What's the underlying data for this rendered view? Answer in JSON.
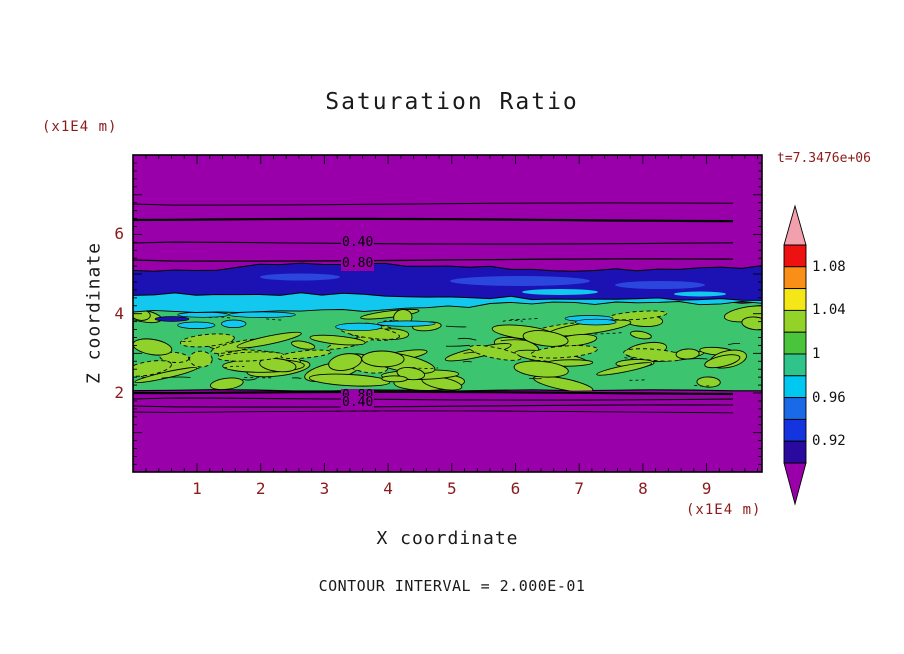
{
  "title": "Saturation Ratio",
  "timestamp": "t=7.3476e+06",
  "contour_note": "CONTOUR INTERVAL = 2.000E-01",
  "axes": {
    "x": {
      "label": "X coordinate",
      "unit": "(x1E4 m)",
      "tick_labels": [
        "1",
        "2",
        "3",
        "4",
        "5",
        "6",
        "7",
        "8",
        "9"
      ],
      "tick_values": [
        1,
        2,
        3,
        4,
        5,
        6,
        7,
        8,
        9
      ],
      "range": [
        0,
        9.9
      ]
    },
    "y": {
      "label": "Z coordinate",
      "unit": "(x1E4 m)",
      "tick_labels": [
        "2",
        "4",
        "6"
      ],
      "tick_values": [
        2,
        4,
        6
      ],
      "range": [
        0,
        8
      ]
    }
  },
  "contour_labels": {
    "upper": [
      "0.40",
      "0.80"
    ],
    "lower": [
      "0.80",
      "0.40"
    ]
  },
  "colorbar": {
    "tick_labels": [
      "1.08",
      "1.04",
      "1",
      "0.96",
      "0.92"
    ],
    "tick_values": [
      1.08,
      1.04,
      1,
      0.96,
      0.92
    ],
    "range": [
      0.9,
      1.1
    ],
    "segment_colors_top_to_bottom": [
      "#ee1111",
      "#fa8f17",
      "#f5e617",
      "#93d226",
      "#49c43b",
      "#2ec48a",
      "#00c8f0",
      "#1a6ae8",
      "#1434e0",
      "#2a0a9e"
    ],
    "above_range_color": "#f2a0ae",
    "below_range_color": "#9900aa"
  },
  "field_colors": {
    "background": "#9900aa",
    "band_blue": "#1c12b4",
    "band_cyan": "#12c8ee",
    "green_base": "#3cc46e",
    "green_blob": "#8fd22b"
  },
  "text_colors": {
    "title": "#1a1a1a",
    "axis_values": "#8b1a1a",
    "labels": "#1a1a1a"
  },
  "chart_data": {
    "type": "heatmap",
    "title": "Saturation Ratio",
    "xlabel": "X coordinate (x1E4 m)",
    "ylabel": "Z coordinate (x1E4 m)",
    "xlim": [
      0,
      9.9
    ],
    "ylim": [
      0,
      8
    ],
    "time_annotation": "t=7.3476e+06",
    "contour_interval": 0.2,
    "labeled_contour_levels": [
      0.4,
      0.8
    ],
    "colorbar_ticks": [
      0.92,
      0.96,
      1,
      1.04,
      1.08
    ],
    "colorbar_range": [
      0.9,
      1.1
    ],
    "regions": [
      {
        "z_range": [
          5.5,
          8.0
        ],
        "value": "< 0.92",
        "description": "uniform purple background (subsaturated); thin horizontal contours near z ~ 6.8, 6.4, 5.8, 5.4 labeled 0.40 and 0.80"
      },
      {
        "z_range": [
          4.4,
          5.5
        ],
        "value": "~ 0.92",
        "description": "continuous dark-blue band spanning all x, thicker toward the right half"
      },
      {
        "z_range": [
          4.0,
          4.7
        ],
        "value": "0.96 - 1.00",
        "description": "cyan band beneath the blue band, thicker on the left half"
      },
      {
        "z_range": [
          2.0,
          4.2
        ],
        "value": "1.00 - 1.04",
        "description": "turbulent mottled layer of green and yellow-green filaments outlined by black contour lines, with small cyan/blue streaks near the top left"
      },
      {
        "z_range": [
          0.0,
          2.0
        ],
        "value": "< 0.92",
        "description": "uniform purple background; closely spaced contours near z ~ 2.0 - 1.5 with overlapping labels 0.80 and 0.40"
      }
    ]
  }
}
